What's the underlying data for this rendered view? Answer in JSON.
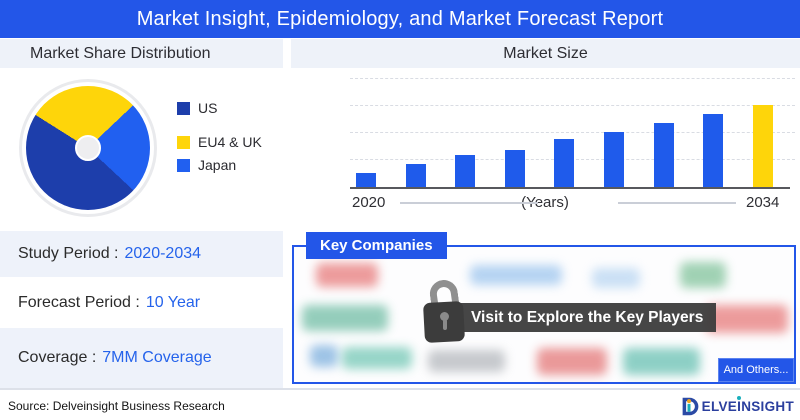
{
  "banner": {
    "title": "Market Insight, Epidemiology, and Market Forecast Report"
  },
  "market_share": {
    "title": "Market Share Distribution"
  },
  "market_size": {
    "title": "Market Size"
  },
  "chart_data": [
    {
      "type": "pie",
      "title": "Market Share Distribution",
      "labels": [
        "US",
        "EU4 & UK",
        "Japan"
      ],
      "values": [
        47,
        29,
        24
      ],
      "colors": [
        "#1D3EAB",
        "#FED50A",
        "#2160F0"
      ],
      "start_angle_deg": 133,
      "donut": true,
      "legend_position": "right"
    },
    {
      "type": "bar",
      "title": "Market Size",
      "x_first": "2020",
      "x_middle": "(Years)",
      "x_last": "2034",
      "values": [
        17,
        28,
        39,
        45,
        58,
        67,
        78,
        89,
        100
      ],
      "bar_color": "#1F5BEB",
      "highlight_last_color": "#FED50A",
      "xlabel": "(Years)",
      "ylabel": "",
      "gridlines": "dashed-horizontal",
      "x_range": [
        "2020",
        "2034"
      ]
    }
  ],
  "details": [
    {
      "label": "Study Period :",
      "value": "2020-2034"
    },
    {
      "label": "Forecast Period :",
      "value": "10 Year"
    },
    {
      "label": "Coverage :",
      "value": "7MM Coverage"
    }
  ],
  "key_companies": {
    "title": "Key Companies",
    "tooltip": "Visit to Explore the Key Players",
    "more_button": "And Others..."
  },
  "footer": {
    "source": "Source: Delveinsight Business Research",
    "brand": "DELVEINSIGHT"
  },
  "colors": {
    "brand_blue": "#2356E8",
    "accent_yellow": "#FED50A",
    "value_text_blue": "#2563EB"
  }
}
